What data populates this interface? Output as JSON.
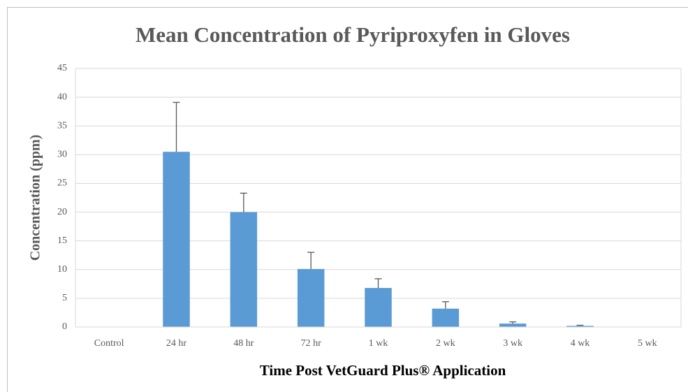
{
  "chart_data": {
    "type": "bar",
    "title": "Mean Concentration of Pyriproxyfen in Gloves",
    "xlabel": "Time Post VetGuard Plus® Application",
    "ylabel": "Concentration (ppm)",
    "categories": [
      "Control",
      "24 hr",
      "48 hr",
      "72 hr",
      "1 wk",
      "2 wk",
      "3 wk",
      "4 wk",
      "5 wk"
    ],
    "values": [
      0,
      30.5,
      20,
      10.1,
      6.8,
      3.2,
      0.6,
      0.2,
      0
    ],
    "errors": [
      null,
      8.6,
      3.3,
      2.9,
      1.6,
      1.2,
      0.3,
      0.1,
      null
    ],
    "color": "#5b9bd5",
    "ylim": [
      0,
      45
    ],
    "yticks": [
      0,
      5,
      10,
      15,
      20,
      25,
      30,
      35,
      40,
      45
    ],
    "grid": true
  }
}
